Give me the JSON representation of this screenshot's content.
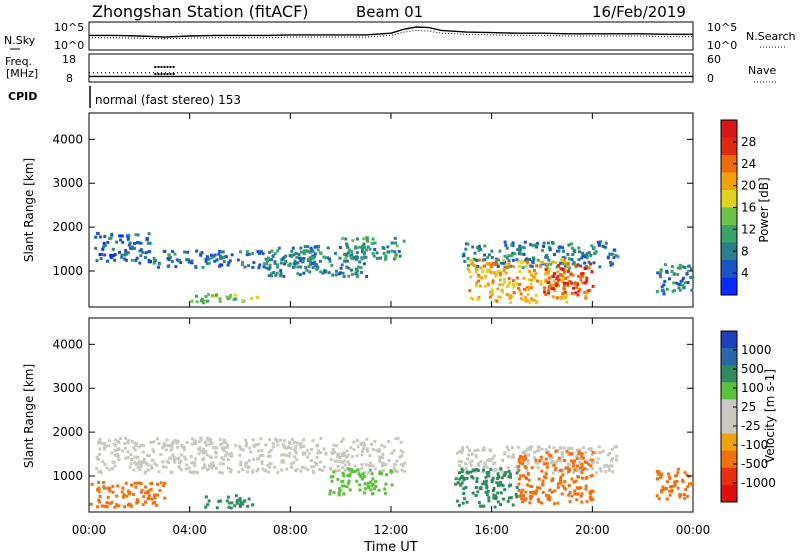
{
  "header": {
    "station": "Zhongshan Station (fitACF)",
    "beam": "Beam 01",
    "date": "16/Feb/2019"
  },
  "chart_data": [
    {
      "type": "line",
      "name": "noise-panel",
      "left_label": "N.Sky",
      "right_label": "N.Search",
      "y_ticks": [
        "10^5",
        "10^0"
      ],
      "right_ticks": [
        "10^5",
        "10^0"
      ],
      "time_hours": [
        0,
        1,
        2,
        3,
        4,
        5,
        6,
        7,
        8,
        9,
        10,
        11,
        12,
        12.5,
        13,
        13.5,
        14,
        15,
        16,
        17,
        18,
        19,
        20,
        21,
        22,
        23,
        24
      ],
      "sky_level": [
        2.6,
        2.6,
        2.5,
        2.3,
        2.5,
        2.6,
        2.6,
        2.6,
        2.7,
        2.7,
        2.7,
        2.7,
        3.0,
        3.7,
        4.1,
        4.0,
        3.5,
        3.2,
        3.1,
        3.0,
        3.0,
        2.9,
        2.9,
        2.9,
        2.9,
        2.8,
        2.8
      ],
      "search_level": [
        2.2,
        2.2,
        2.1,
        2.0,
        2.1,
        2.2,
        2.2,
        2.2,
        2.3,
        2.3,
        2.3,
        2.3,
        2.6,
        3.2,
        3.5,
        3.4,
        3.0,
        2.8,
        2.7,
        2.6,
        2.6,
        2.5,
        2.5,
        2.5,
        2.5,
        2.4,
        2.4
      ]
    },
    {
      "type": "scatter",
      "name": "frequency-panel",
      "left_label_top": "Freq.",
      "left_label_bottom": "[MHz]",
      "right_label": "Nave",
      "y_ticks": [
        "18",
        "8"
      ],
      "right_ticks": [
        "60",
        "0"
      ],
      "freq_mhz": 10,
      "nave": 20,
      "cpid_label": "CPID",
      "cpid_text": "normal (fast stereo) 153"
    },
    {
      "type": "heatmap",
      "name": "power-panel",
      "ylabel": "Slant Range [km]",
      "yticks": [
        "4000",
        "3000",
        "2000",
        "1000"
      ],
      "ytick_values": [
        4000,
        3000,
        2000,
        1000
      ],
      "ylim": [
        180,
        4600
      ],
      "xlim_hours": [
        0,
        24
      ],
      "colorbar_label": "Power [dB]",
      "colorbar_ticks": [
        "28",
        "24",
        "20",
        "16",
        "12",
        "8",
        "4"
      ],
      "colorbar_colors": [
        "#0a2aff",
        "#1a55c8",
        "#2c7f8a",
        "#3aa36a",
        "#6dc24a",
        "#e0d020",
        "#f3a20f",
        "#f06a10",
        "#e02a10",
        "#d81818"
      ],
      "regions": [
        {
          "start_hr": 0.2,
          "end_hr": 2.5,
          "range_min": 1200,
          "range_max": 1900,
          "power_db": 6
        },
        {
          "start_hr": 2.5,
          "end_hr": 9.0,
          "range_min": 1100,
          "range_max": 1500,
          "power_db": 7
        },
        {
          "start_hr": 4.0,
          "end_hr": 7.0,
          "range_min": 300,
          "range_max": 500,
          "power_db": 14
        },
        {
          "start_hr": 7.0,
          "end_hr": 11.0,
          "range_min": 900,
          "range_max": 1600,
          "power_db": 8
        },
        {
          "start_hr": 10.0,
          "end_hr": 12.5,
          "range_min": 1300,
          "range_max": 1800,
          "power_db": 10
        },
        {
          "start_hr": 14.8,
          "end_hr": 21.0,
          "range_min": 1100,
          "range_max": 1700,
          "power_db": 8
        },
        {
          "start_hr": 15.0,
          "end_hr": 19.0,
          "range_min": 300,
          "range_max": 1300,
          "power_db": 20
        },
        {
          "start_hr": 18.0,
          "end_hr": 20.0,
          "range_min": 400,
          "range_max": 1200,
          "power_db": 26
        },
        {
          "start_hr": 22.5,
          "end_hr": 24.0,
          "range_min": 500,
          "range_max": 1200,
          "power_db": 8
        }
      ]
    },
    {
      "type": "heatmap",
      "name": "velocity-panel",
      "ylabel": "Slant Range [km]",
      "yticks": [
        "4000",
        "3000",
        "2000",
        "1000"
      ],
      "ytick_values": [
        4000,
        3000,
        2000,
        1000
      ],
      "ylim": [
        180,
        4600
      ],
      "xlim_hours": [
        0,
        24
      ],
      "xlabel": "Time UT",
      "xticks": [
        "00:00",
        "04:00",
        "08:00",
        "12:00",
        "16:00",
        "20:00",
        "00:00"
      ],
      "xtick_hours": [
        0,
        4,
        8,
        12,
        16,
        20,
        24
      ],
      "colorbar_label": "Velocity [m s-1]",
      "colorbar_ticks": [
        "1000",
        "500",
        "100",
        "25",
        "-25",
        "-100",
        "-500",
        "-1000"
      ],
      "colorbar_colors": [
        "#1f3fbf",
        "#2a67a8",
        "#2f8a5e",
        "#58c23a",
        "#c8c8c0",
        "#c8c8c0",
        "#f0a010",
        "#f07010",
        "#e83010",
        "#e01010"
      ],
      "regions": [
        {
          "start_hr": 0.2,
          "end_hr": 12.5,
          "range_min": 1100,
          "range_max": 1900,
          "velocity": 0
        },
        {
          "start_hr": 0.0,
          "end_hr": 3.0,
          "range_min": 300,
          "range_max": 900,
          "velocity": -150
        },
        {
          "start_hr": 4.5,
          "end_hr": 6.5,
          "range_min": 300,
          "range_max": 600,
          "velocity": 300
        },
        {
          "start_hr": 9.5,
          "end_hr": 12.0,
          "range_min": 600,
          "range_max": 1200,
          "velocity": 80
        },
        {
          "start_hr": 14.5,
          "end_hr": 21.0,
          "range_min": 1100,
          "range_max": 1700,
          "velocity": 0
        },
        {
          "start_hr": 14.5,
          "end_hr": 17.0,
          "range_min": 300,
          "range_max": 1200,
          "velocity": 150
        },
        {
          "start_hr": 17.0,
          "end_hr": 20.0,
          "range_min": 400,
          "range_max": 1600,
          "velocity": -250
        },
        {
          "start_hr": 22.5,
          "end_hr": 24.0,
          "range_min": 500,
          "range_max": 1200,
          "velocity": -150
        }
      ]
    }
  ]
}
